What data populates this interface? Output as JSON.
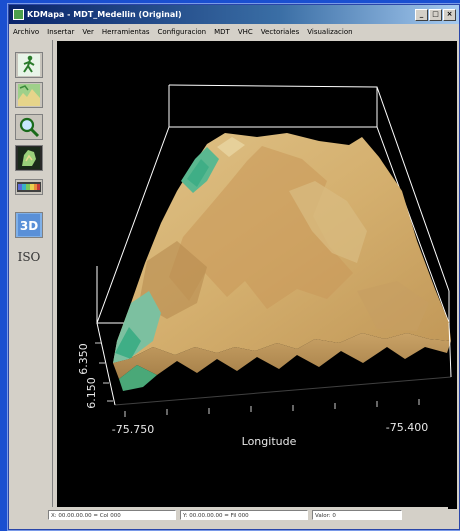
{
  "window": {
    "title": "KDMapa - MDT_Medellin (Original)",
    "min_glyph": "_",
    "max_glyph": "□",
    "close_glyph": "×"
  },
  "menu": [
    "Archivo",
    "Insertar",
    "Ver",
    "Herramientas",
    "Configuracion",
    "MDT",
    "VHC",
    "Vectoriales",
    "Visualizacion"
  ],
  "toolbar": {
    "tools": [
      {
        "name": "walk-tool",
        "icon": "walking-figure-icon"
      },
      {
        "name": "terrain-tool",
        "icon": "terrain-map-icon"
      },
      {
        "name": "zoom-tool",
        "icon": "magnifier-icon"
      },
      {
        "name": "map-tool",
        "icon": "dark-map-icon"
      },
      {
        "name": "legend-tool",
        "icon": "color-ramp-icon"
      },
      {
        "name": "3d-tool",
        "icon": "3d-icon",
        "label": "3D"
      },
      {
        "name": "iso-tool",
        "icon": "iso-icon",
        "label": "ISO"
      }
    ]
  },
  "view": {
    "x_tick_left": "-75.750",
    "x_tick_right": "-75.400",
    "x_axis_label": "Longitude",
    "y_tick_top": "6.350",
    "y_tick_bottom": "6.150"
  },
  "status": {
    "x_field": "X: 00.00.00.00 = Col 000",
    "y_field": "Y: 00.00.00.00 = Fil 000",
    "value_field": "Valor: 0"
  },
  "colors": {
    "terrain_high": "#d9b878",
    "terrain_mid": "#c9a266",
    "terrain_low": "#3fae86",
    "background": "#000000",
    "bounding_box": "#ffffff"
  }
}
